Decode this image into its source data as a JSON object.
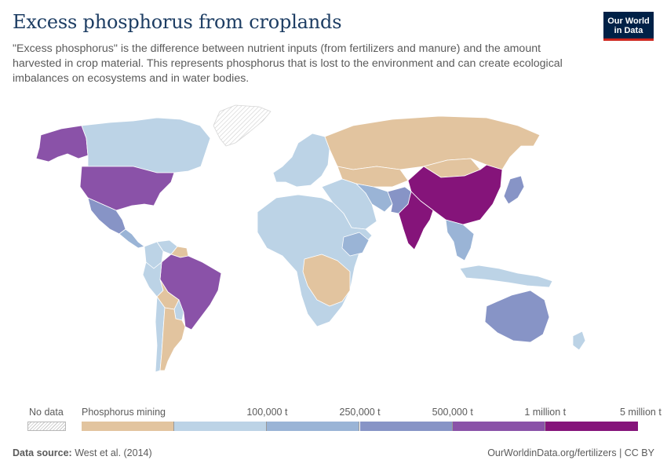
{
  "header": {
    "title": "Excess phosphorus from croplands",
    "subtitle": "\"Excess phosphorus\" is the difference between nutrient inputs (from fertilizers and manure) and the amount harvested in crop material. This represents phosphorus that is lost to the environment and can create ecological imbalances on ecosystems and in water bodies."
  },
  "logo": {
    "line1": "Our World",
    "line2": "in Data"
  },
  "legend": {
    "no_data_label": "No data",
    "bins": [
      {
        "label": "Phosphorus mining",
        "color": "#e2c49f"
      },
      {
        "label": "",
        "color": "#bcd3e6"
      },
      {
        "label": "100,000 t",
        "color": "#9ab4d6"
      },
      {
        "label": "250,000 t",
        "color": "#8794c6"
      },
      {
        "label": "500,000 t",
        "color": "#8a52a8"
      },
      {
        "label": "1 million t",
        "color": "#85147a"
      },
      {
        "label": "5 million t",
        "color": ""
      }
    ]
  },
  "map": {
    "regions": [
      {
        "name": "Canada",
        "bin": 1
      },
      {
        "name": "United States",
        "bin": 4
      },
      {
        "name": "Alaska",
        "bin": 4
      },
      {
        "name": "Mexico",
        "bin": 3
      },
      {
        "name": "Central America",
        "bin": 2
      },
      {
        "name": "Greenland",
        "bin": -1
      },
      {
        "name": "Brazil",
        "bin": 4
      },
      {
        "name": "Venezuela",
        "bin": 1
      },
      {
        "name": "Guyana",
        "bin": 0
      },
      {
        "name": "Colombia",
        "bin": 1
      },
      {
        "name": "Peru",
        "bin": 1
      },
      {
        "name": "Bolivia",
        "bin": 0
      },
      {
        "name": "Paraguay",
        "bin": 1
      },
      {
        "name": "Argentina",
        "bin": 0
      },
      {
        "name": "Chile",
        "bin": 1
      },
      {
        "name": "Europe",
        "bin": 1
      },
      {
        "name": "Russia",
        "bin": 0
      },
      {
        "name": "Kazakhstan",
        "bin": 0
      },
      {
        "name": "Africa",
        "bin": 1
      },
      {
        "name": "Central Africa",
        "bin": 0
      },
      {
        "name": "Ethiopia",
        "bin": 2
      },
      {
        "name": "Middle East",
        "bin": 1
      },
      {
        "name": "Iran",
        "bin": 2
      },
      {
        "name": "Pakistan",
        "bin": 3
      },
      {
        "name": "India",
        "bin": 5
      },
      {
        "name": "China",
        "bin": 5
      },
      {
        "name": "Mongolia",
        "bin": 0
      },
      {
        "name": "Japan",
        "bin": 3
      },
      {
        "name": "Southeast Asia",
        "bin": 2
      },
      {
        "name": "Indonesia",
        "bin": 1
      },
      {
        "name": "Australia",
        "bin": 3
      },
      {
        "name": "New Zealand",
        "bin": 1
      }
    ]
  },
  "footer": {
    "source_label": "Data source:",
    "source_text": "West et al. (2014)",
    "url": "OurWorldinData.org/fertilizers | CC BY"
  }
}
